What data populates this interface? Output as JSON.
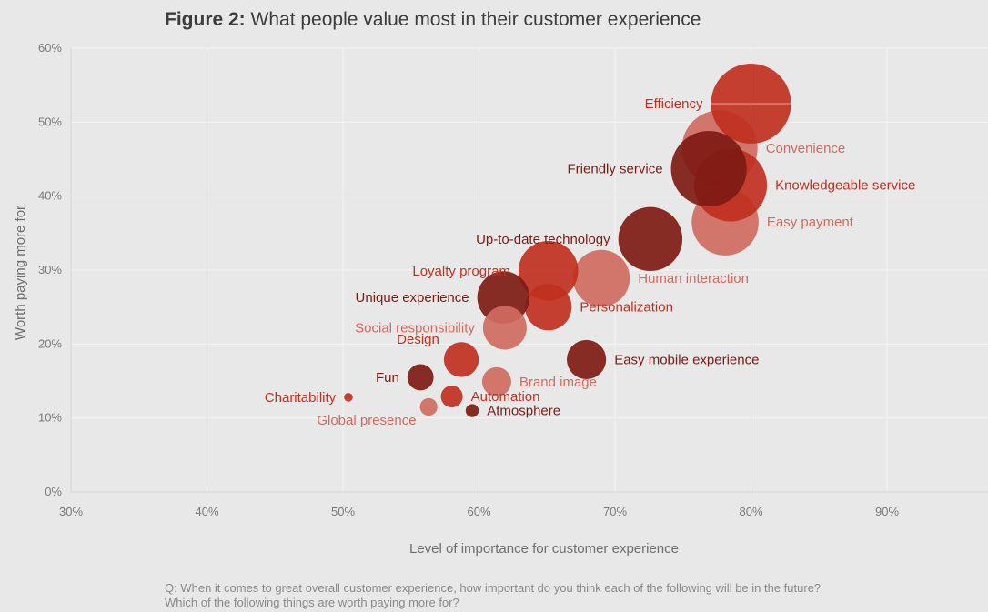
{
  "title": {
    "lead": "Figure 2:",
    "rest": "What people value most in their customer experience"
  },
  "footnote": {
    "line1": "Q: When it comes to great overall customer experience, how important do you think each of the following will be in the future?",
    "line2": "Which of the following things are worth paying more for?"
  },
  "colors": {
    "dark": "#7e1a14",
    "mid": "#c0301f",
    "light": "#cf6b60",
    "background": "#e8e8e8"
  },
  "chart_data": {
    "type": "scatter",
    "xlabel": "Level of importance for customer experience",
    "ylabel": "Worth paying more for",
    "xlim": [
      30,
      95
    ],
    "ylim": [
      0,
      60
    ],
    "x_ticks": [
      "30%",
      "40%",
      "50%",
      "60%",
      "70%",
      "80%",
      "90%"
    ],
    "y_ticks": [
      "0%",
      "10%",
      "20%",
      "30%",
      "40%",
      "50%",
      "60%"
    ],
    "grid": true,
    "points": [
      {
        "label": "Convenience",
        "x": 77.7,
        "y": 46.5,
        "size": 5.2,
        "tone": "light",
        "label_side": "right"
      },
      {
        "label": "Efficiency",
        "x": 80,
        "y": 52.5,
        "size": 5.5,
        "tone": "mid",
        "label_side": "left"
      },
      {
        "label": "Easy payment",
        "x": 78.1,
        "y": 36.5,
        "size": 4.6,
        "tone": "light",
        "label_side": "right"
      },
      {
        "label": "Knowledgeable service",
        "x": 78.5,
        "y": 41.5,
        "size": 5.0,
        "tone": "mid",
        "label_side": "right"
      },
      {
        "label": "Friendly service",
        "x": 76.9,
        "y": 43.7,
        "size": 5.2,
        "tone": "dark",
        "label_side": "left"
      },
      {
        "label": "Up-to-date technology",
        "x": 72.6,
        "y": 34.2,
        "size": 4.4,
        "tone": "dark",
        "label_side": "left"
      },
      {
        "label": "Human interaction",
        "x": 69.0,
        "y": 28.9,
        "size": 3.9,
        "tone": "light",
        "label_side": "right"
      },
      {
        "label": "Loyalty program",
        "x": 65.1,
        "y": 29.9,
        "size": 4.1,
        "tone": "mid",
        "label_side": "left"
      },
      {
        "label": "Personalization",
        "x": 65.1,
        "y": 25.0,
        "size": 3.2,
        "tone": "mid",
        "label_side": "right"
      },
      {
        "label": "Unique experience",
        "x": 61.8,
        "y": 26.3,
        "size": 3.6,
        "tone": "dark",
        "label_side": "left"
      },
      {
        "label": "Social responsibility",
        "x": 61.9,
        "y": 22.2,
        "size": 3.0,
        "tone": "light",
        "label_side": "left"
      },
      {
        "label": "Easy mobile experience",
        "x": 67.9,
        "y": 17.9,
        "size": 2.7,
        "tone": "dark",
        "label_side": "right"
      },
      {
        "label": "Design",
        "x": 58.7,
        "y": 17.9,
        "size": 2.4,
        "tone": "mid",
        "label_side": "upper-left"
      },
      {
        "label": "Brand image",
        "x": 61.3,
        "y": 14.9,
        "size": 2.0,
        "tone": "light",
        "label_side": "right"
      },
      {
        "label": "Fun",
        "x": 55.7,
        "y": 15.5,
        "size": 1.8,
        "tone": "dark",
        "label_side": "left"
      },
      {
        "label": "Automation",
        "x": 58.0,
        "y": 12.9,
        "size": 1.5,
        "tone": "mid",
        "label_side": "right"
      },
      {
        "label": "Charitability",
        "x": 50.4,
        "y": 12.8,
        "size": 0.6,
        "tone": "mid",
        "label_side": "left"
      },
      {
        "label": "Global presence",
        "x": 56.3,
        "y": 11.5,
        "size": 1.2,
        "tone": "light",
        "label_side": "lower-left"
      },
      {
        "label": "Atmosphere",
        "x": 59.5,
        "y": 11.0,
        "size": 0.9,
        "tone": "dark",
        "label_side": "right"
      }
    ]
  }
}
